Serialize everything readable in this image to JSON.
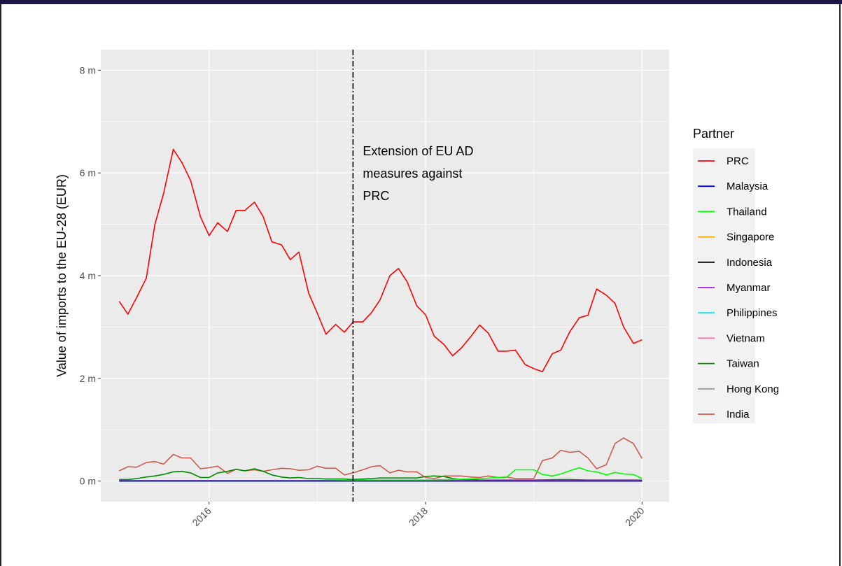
{
  "chart_data": {
    "type": "line",
    "ylabel": "Value of imports to the EU-28 (EUR)",
    "xlabel": "",
    "xlim": [
      2015.0,
      2020.25
    ],
    "ylim": [
      -0.4,
      8.4
    ],
    "x_ticks": [
      {
        "value": 2016,
        "label": "2016"
      },
      {
        "value": 2018,
        "label": "2018"
      },
      {
        "value": 2020,
        "label": "2020"
      }
    ],
    "y_ticks": [
      {
        "value": 0,
        "label": "0 m"
      },
      {
        "value": 2,
        "label": "2 m"
      },
      {
        "value": 4,
        "label": "4 m"
      },
      {
        "value": 6,
        "label": "6 m"
      },
      {
        "value": 8,
        "label": "8 m"
      }
    ],
    "grid": true,
    "legend": {
      "title": "Partner",
      "position": "right"
    },
    "annotation": {
      "x": 2017.33,
      "lines": [
        "Extension of EU AD",
        "measures against",
        "PRC"
      ],
      "line_style": "dash-dot"
    },
    "series": [
      {
        "name": "PRC",
        "color": "#FF0000",
        "x": [
          2015.17,
          2015.25,
          2015.33,
          2015.42,
          2015.5,
          2015.58,
          2015.67,
          2015.75,
          2015.83,
          2015.92,
          2016.0,
          2016.08,
          2016.17,
          2016.25,
          2016.33,
          2016.42,
          2016.5,
          2016.58,
          2016.67,
          2016.75,
          2016.83,
          2016.92,
          2017.0,
          2017.08,
          2017.17,
          2017.25,
          2017.33,
          2017.42,
          2017.5,
          2017.58,
          2017.67,
          2017.75,
          2017.83,
          2017.92,
          2018.0,
          2018.08,
          2018.17,
          2018.25,
          2018.33,
          2018.42,
          2018.5,
          2018.58,
          2018.67,
          2018.75,
          2018.83,
          2018.92,
          2019.0,
          2019.08,
          2019.17,
          2019.25,
          2019.33,
          2019.42,
          2019.5,
          2019.58,
          2019.67,
          2019.75,
          2019.83,
          2019.92,
          2020.0
        ],
        "y": [
          3.5,
          3.25,
          3.57,
          3.95,
          5.0,
          5.6,
          6.46,
          6.2,
          5.85,
          5.15,
          4.78,
          5.03,
          4.86,
          5.27,
          5.27,
          5.43,
          5.15,
          4.66,
          4.6,
          4.31,
          4.46,
          3.66,
          3.27,
          2.86,
          3.05,
          2.9,
          3.1,
          3.1,
          3.28,
          3.53,
          4.0,
          4.14,
          3.88,
          3.41,
          3.24,
          2.82,
          2.66,
          2.44,
          2.59,
          2.82,
          3.04,
          2.88,
          2.53,
          2.53,
          2.55,
          2.27,
          2.19,
          2.13,
          2.48,
          2.55,
          2.9,
          3.18,
          3.23,
          3.74,
          3.62,
          3.46,
          3.0,
          2.68,
          2.75
        ]
      },
      {
        "name": "Malaysia",
        "color": "#0000FF",
        "x": [
          2015.17,
          2020.0
        ],
        "y": [
          0.0,
          0.0
        ]
      },
      {
        "name": "Thailand",
        "color": "#00FF00",
        "x": [
          2015.17,
          2017.0,
          2017.5,
          2018.0,
          2018.25,
          2018.5,
          2018.67,
          2018.75,
          2018.83,
          2018.92,
          2019.0,
          2019.08,
          2019.17,
          2019.25,
          2019.33,
          2019.42,
          2019.5,
          2019.58,
          2019.67,
          2019.75,
          2019.83,
          2019.92,
          2020.0
        ],
        "y": [
          0.0,
          0.0,
          0.02,
          0.02,
          0.03,
          0.05,
          0.07,
          0.08,
          0.22,
          0.22,
          0.22,
          0.13,
          0.1,
          0.14,
          0.2,
          0.26,
          0.2,
          0.18,
          0.12,
          0.17,
          0.14,
          0.13,
          0.05
        ]
      },
      {
        "name": "Singapore",
        "color": "#FFA500",
        "x": [
          2015.17,
          2020.0
        ],
        "y": [
          0.0,
          0.0
        ]
      },
      {
        "name": "Indonesia",
        "color": "#000000",
        "x": [
          2015.17,
          2020.0
        ],
        "y": [
          0.0,
          0.0
        ]
      },
      {
        "name": "Myanmar",
        "color": "#A020F0",
        "x": [
          2015.17,
          2020.0
        ],
        "y": [
          0.01,
          0.01
        ]
      },
      {
        "name": "Philippines",
        "color": "#00E5EE",
        "x": [
          2015.17,
          2020.0
        ],
        "y": [
          0.0,
          0.0
        ]
      },
      {
        "name": "Vietnam",
        "color": "#FF69B4",
        "x": [
          2015.17,
          2015.5,
          2016.0,
          2016.5,
          2017.0,
          2017.5,
          2018.0,
          2018.5,
          2019.0,
          2019.5,
          2020.0
        ],
        "y": [
          0.0,
          0.01,
          0.01,
          0.0,
          0.01,
          0.0,
          0.01,
          0.0,
          0.01,
          0.0,
          0.0
        ]
      },
      {
        "name": "Taiwan",
        "color": "#008B00",
        "x": [
          2015.17,
          2015.25,
          2015.33,
          2015.42,
          2015.5,
          2015.58,
          2015.67,
          2015.75,
          2015.83,
          2015.92,
          2016.0,
          2016.08,
          2016.17,
          2016.25,
          2016.33,
          2016.42,
          2016.5,
          2016.58,
          2016.67,
          2016.75,
          2016.83,
          2016.92,
          2017.0,
          2017.08,
          2017.17,
          2017.25,
          2017.33,
          2017.42,
          2017.5,
          2017.58,
          2017.67,
          2017.75,
          2017.83,
          2017.92,
          2018.0,
          2018.08,
          2018.17,
          2018.25,
          2018.33,
          2018.42,
          2018.5,
          2018.75,
          2019.0,
          2019.25,
          2019.33,
          2019.5,
          2020.0
        ],
        "y": [
          0.03,
          0.03,
          0.05,
          0.08,
          0.1,
          0.13,
          0.18,
          0.19,
          0.16,
          0.07,
          0.07,
          0.16,
          0.19,
          0.23,
          0.2,
          0.24,
          0.19,
          0.12,
          0.08,
          0.06,
          0.07,
          0.05,
          0.05,
          0.04,
          0.04,
          0.04,
          0.03,
          0.04,
          0.05,
          0.06,
          0.06,
          0.06,
          0.06,
          0.06,
          0.09,
          0.1,
          0.09,
          0.05,
          0.03,
          0.03,
          0.02,
          0.02,
          0.02,
          0.03,
          0.03,
          0.02,
          0.02
        ]
      },
      {
        "name": "Hong Kong",
        "color": "#999999",
        "x": [
          2015.17,
          2020.0
        ],
        "y": [
          0.0,
          0.0
        ]
      },
      {
        "name": "India",
        "color": "#CD5C4C",
        "x": [
          2015.17,
          2015.25,
          2015.33,
          2015.42,
          2015.5,
          2015.58,
          2015.67,
          2015.75,
          2015.83,
          2015.92,
          2016.0,
          2016.08,
          2016.17,
          2016.25,
          2016.33,
          2016.42,
          2016.5,
          2016.58,
          2016.67,
          2016.75,
          2016.83,
          2016.92,
          2017.0,
          2017.08,
          2017.17,
          2017.25,
          2017.33,
          2017.42,
          2017.5,
          2017.58,
          2017.67,
          2017.75,
          2017.83,
          2017.92,
          2018.0,
          2018.08,
          2018.17,
          2018.25,
          2018.33,
          2018.42,
          2018.5,
          2018.58,
          2018.67,
          2018.75,
          2018.83,
          2018.92,
          2019.0,
          2019.08,
          2019.17,
          2019.25,
          2019.33,
          2019.42,
          2019.5,
          2019.58,
          2019.67,
          2019.75,
          2019.83,
          2019.92,
          2020.0
        ],
        "y": [
          0.2,
          0.28,
          0.27,
          0.36,
          0.38,
          0.33,
          0.52,
          0.45,
          0.45,
          0.24,
          0.26,
          0.29,
          0.15,
          0.23,
          0.2,
          0.22,
          0.19,
          0.22,
          0.25,
          0.24,
          0.21,
          0.22,
          0.29,
          0.25,
          0.25,
          0.12,
          0.16,
          0.22,
          0.28,
          0.3,
          0.16,
          0.21,
          0.18,
          0.18,
          0.07,
          0.05,
          0.1,
          0.1,
          0.1,
          0.08,
          0.07,
          0.1,
          0.07,
          0.08,
          0.05,
          0.05,
          0.05,
          0.4,
          0.45,
          0.6,
          0.56,
          0.58,
          0.45,
          0.24,
          0.32,
          0.73,
          0.84,
          0.73,
          0.44
        ]
      }
    ]
  }
}
